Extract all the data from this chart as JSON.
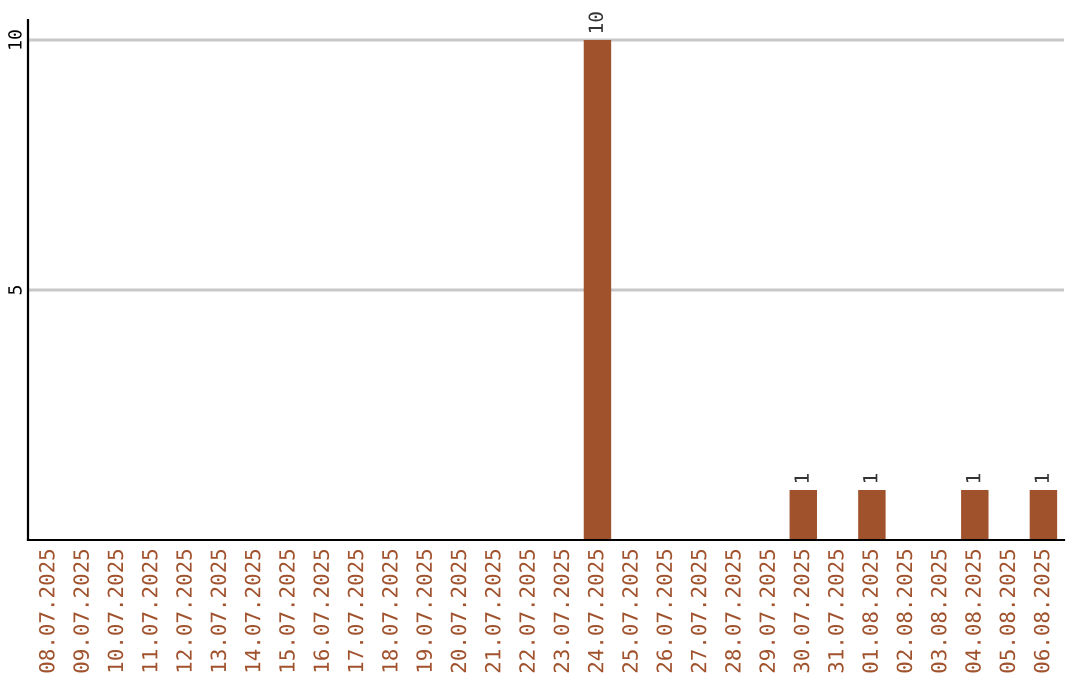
{
  "chart_data": {
    "type": "bar",
    "categories": [
      "08.07.2025",
      "09.07.2025",
      "10.07.2025",
      "11.07.2025",
      "12.07.2025",
      "13.07.2025",
      "14.07.2025",
      "15.07.2025",
      "16.07.2025",
      "17.07.2025",
      "18.07.2025",
      "19.07.2025",
      "20.07.2025",
      "21.07.2025",
      "22.07.2025",
      "23.07.2025",
      "24.07.2025",
      "25.07.2025",
      "26.07.2025",
      "27.07.2025",
      "28.07.2025",
      "29.07.2025",
      "30.07.2025",
      "31.07.2025",
      "01.08.2025",
      "02.08.2025",
      "03.08.2025",
      "04.08.2025",
      "05.08.2025",
      "06.08.2025"
    ],
    "values": [
      0,
      0,
      0,
      0,
      0,
      0,
      0,
      0,
      0,
      0,
      0,
      0,
      0,
      0,
      0,
      0,
      10,
      0,
      0,
      0,
      0,
      0,
      1,
      0,
      1,
      0,
      0,
      1,
      0,
      1
    ],
    "value_labels": [
      null,
      null,
      null,
      null,
      null,
      null,
      null,
      null,
      null,
      null,
      null,
      null,
      null,
      null,
      null,
      null,
      "10",
      null,
      null,
      null,
      null,
      null,
      "1",
      null,
      "1",
      null,
      null,
      "1",
      null,
      "1"
    ],
    "color": "#a0522d",
    "ylim": [
      0,
      10.4
    ],
    "yticks": [
      5,
      10
    ],
    "grid": "y"
  }
}
